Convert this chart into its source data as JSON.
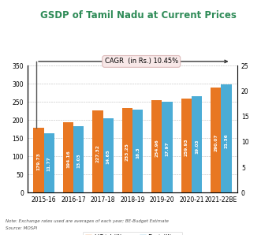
{
  "title": "GSDP of Tamil Nadu at Current Prices",
  "categories": [
    "2015-16",
    "2016-17",
    "2017-18",
    "2018-19",
    "2019-20",
    "2020-21",
    "2021-22BE"
  ],
  "usd_values": [
    179.73,
    194.16,
    227.32,
    233.25,
    254.96,
    259.93,
    290.07
  ],
  "rs_values": [
    11.77,
    13.03,
    14.65,
    16.3,
    17.97,
    19.03,
    21.36
  ],
  "usd_color": "#E87722",
  "rs_color": "#4BACD6",
  "left_ylim": [
    0,
    350
  ],
  "right_ylim": [
    0,
    25
  ],
  "left_yticks": [
    0.0,
    50.0,
    100.0,
    150.0,
    200.0,
    250.0,
    300.0,
    350.0
  ],
  "right_yticks": [
    0.0,
    5.0,
    10.0,
    15.0,
    20.0,
    25.0
  ],
  "cagr_text": "CAGR  (in Rs.) 10.45%",
  "note_text": "Note: Exchange rates used are averages of each year; BE-Budget Estimate",
  "source_text": "Source: MOSPI",
  "title_color": "#2E8B57",
  "title_fontsize": 8.5,
  "bar_width": 0.35,
  "background_color": "#FFFFFF"
}
